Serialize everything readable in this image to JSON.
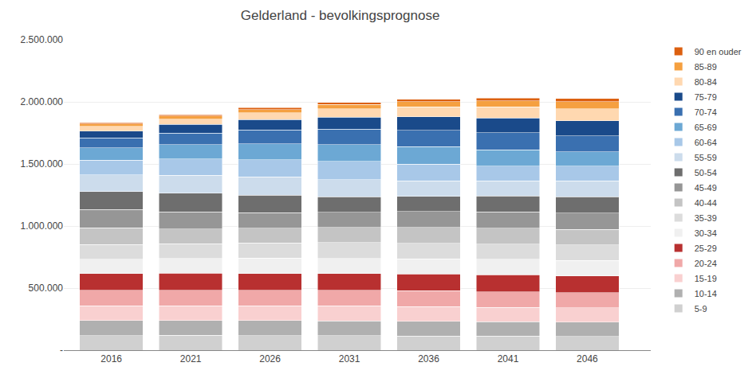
{
  "chart_data": {
    "type": "bar",
    "stacked": true,
    "title": "Gelderland - bevolkingsprognose",
    "x": [
      2016,
      2021,
      2026,
      2031,
      2036,
      2041,
      2046
    ],
    "series": [
      {
        "name": "5-9",
        "color": "#d0d0d0",
        "values": [
          118000,
          120000,
          118000,
          116000,
          114000,
          113000,
          112000
        ]
      },
      {
        "name": "10-14",
        "color": "#b0b0b0",
        "values": [
          120000,
          120000,
          122000,
          120000,
          118000,
          116000,
          114000
        ]
      },
      {
        "name": "15-19",
        "color": "#f9d0d0",
        "values": [
          118000,
          116000,
          118000,
          120000,
          118000,
          116000,
          114000
        ]
      },
      {
        "name": "20-24",
        "color": "#f0a8a8",
        "values": [
          128000,
          126000,
          124000,
          126000,
          128000,
          126000,
          124000
        ]
      },
      {
        "name": "25-29",
        "color": "#b83030",
        "values": [
          133000,
          138000,
          136000,
          134000,
          136000,
          137000,
          135000
        ]
      },
      {
        "name": "30-34",
        "color": "#f0f0f0",
        "values": [
          115000,
          120000,
          125000,
          123000,
          121000,
          123000,
          124000
        ]
      },
      {
        "name": "35-39",
        "color": "#dcdcdc",
        "values": [
          118000,
          117000,
          122000,
          127000,
          125000,
          123000,
          125000
        ]
      },
      {
        "name": "40-44",
        "color": "#c4c4c4",
        "values": [
          135000,
          120000,
          119000,
          124000,
          129000,
          127000,
          125000
        ]
      },
      {
        "name": "45-49",
        "color": "#969696",
        "values": [
          148000,
          138000,
          123000,
          122000,
          127000,
          132000,
          130000
        ]
      },
      {
        "name": "50-54",
        "color": "#6e6e6e",
        "values": [
          145000,
          150000,
          140000,
          125000,
          124000,
          129000,
          134000
        ]
      },
      {
        "name": "55-59",
        "color": "#ccdcec",
        "values": [
          135000,
          143000,
          148000,
          138000,
          123000,
          122000,
          127000
        ]
      },
      {
        "name": "60-64",
        "color": "#a8c8e8",
        "values": [
          118000,
          132000,
          140000,
          145000,
          135000,
          120000,
          119000
        ]
      },
      {
        "name": "65-69",
        "color": "#6ca8d4",
        "values": [
          100000,
          114000,
          128000,
          136000,
          141000,
          131000,
          116000
        ]
      },
      {
        "name": "70-74",
        "color": "#3a70b0",
        "values": [
          78000,
          96000,
          110000,
          124000,
          132000,
          137000,
          127000
        ]
      },
      {
        "name": "75-79",
        "color": "#1a4a8a",
        "values": [
          55000,
          68000,
          84000,
          97000,
          110000,
          117000,
          122000
        ]
      },
      {
        "name": "80-84",
        "color": "#ffd8b0",
        "values": [
          38000,
          44000,
          55000,
          68000,
          80000,
          90000,
          96000
        ]
      },
      {
        "name": "85-89",
        "color": "#f5a040",
        "values": [
          20000,
          23000,
          27000,
          34000,
          42000,
          50000,
          57000
        ]
      },
      {
        "name": "90 en ouder",
        "color": "#dc6010",
        "values": [
          10000,
          11000,
          13000,
          15000,
          18000,
          22000,
          27000
        ]
      }
    ],
    "xlim": [
      2013,
      2050
    ],
    "xticks": [
      2016,
      2021,
      2026,
      2031,
      2036,
      2041,
      2046
    ],
    "ylim": [
      0,
      2500000
    ],
    "yticks": [
      {
        "value": 0,
        "label": "-"
      },
      {
        "value": 500000,
        "label": "500.000"
      },
      {
        "value": 1000000,
        "label": "1.000.000"
      },
      {
        "value": 1500000,
        "label": "1.500.000"
      },
      {
        "value": 2000000,
        "label": "2.000.000"
      },
      {
        "value": 2500000,
        "label": "2.500.000"
      }
    ],
    "grid": true,
    "legend": "right"
  }
}
